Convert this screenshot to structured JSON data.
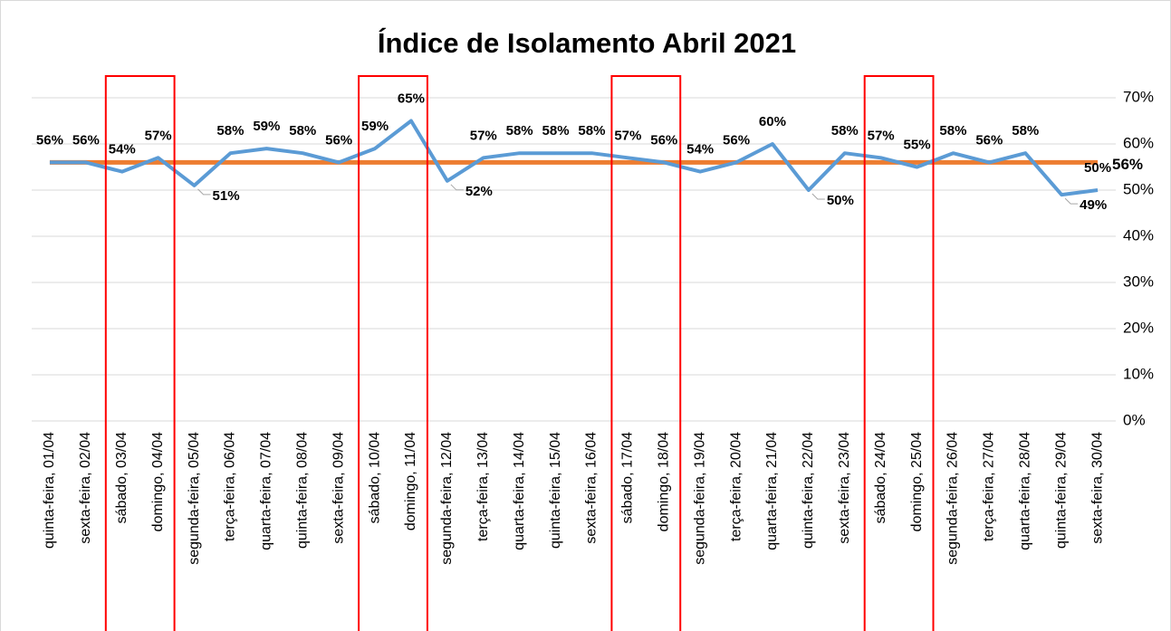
{
  "chart_data": {
    "type": "line",
    "title": "Índice de Isolamento Abril 2021",
    "categories": [
      "quinta-feira, 01/04",
      "sexta-feira, 02/04",
      "sábado, 03/04",
      "domingo, 04/04",
      "segunda-feira, 05/04",
      "terça-feira, 06/04",
      "quarta-feira, 07/04",
      "quinta-feira, 08/04",
      "sexta-feira, 09/04",
      "sábado, 10/04",
      "domingo, 11/04",
      "segunda-feira, 12/04",
      "terça-feira, 13/04",
      "quarta-feira, 14/04",
      "quinta-feira, 15/04",
      "sexta-feira, 16/04",
      "sábado, 17/04",
      "domingo, 18/04",
      "segunda-feira, 19/04",
      "terça-feira, 20/04",
      "quarta-feira, 21/04",
      "quinta-feira, 22/04",
      "sexta-feira, 23/04",
      "sábado, 24/04",
      "domingo, 25/04",
      "segunda-feira, 26/04",
      "terça-feira, 27/04",
      "quarta-feira, 28/04",
      "quinta-feira, 29/04",
      "sexta-feira, 30/04"
    ],
    "values": [
      56,
      56,
      54,
      57,
      51,
      58,
      59,
      58,
      56,
      59,
      65,
      52,
      57,
      58,
      58,
      58,
      57,
      56,
      54,
      56,
      60,
      50,
      58,
      57,
      55,
      58,
      56,
      58,
      49,
      50
    ],
    "value_labels": [
      "56%",
      "56%",
      "54%",
      "57%",
      "51%",
      "58%",
      "59%",
      "58%",
      "56%",
      "59%",
      "65%",
      "52%",
      "57%",
      "58%",
      "58%",
      "58%",
      "57%",
      "56%",
      "54%",
      "56%",
      "60%",
      "50%",
      "58%",
      "57%",
      "55%",
      "58%",
      "56%",
      "58%",
      "49%",
      "50%"
    ],
    "color": "#5b9bd5",
    "reference_line": {
      "value": 56,
      "label": "56%",
      "color": "#ed7d31",
      "label_color": "#ff0000"
    },
    "highlight": [
      false,
      false,
      true,
      true,
      false,
      false,
      false,
      false,
      false,
      true,
      true,
      false,
      false,
      false,
      false,
      false,
      true,
      true,
      false,
      false,
      false,
      false,
      false,
      true,
      true,
      false,
      false,
      false,
      false,
      false
    ],
    "highlight_color": "#ff0000",
    "ylim": [
      0,
      70
    ],
    "yticks": [
      {
        "value": 0,
        "label": "0%"
      },
      {
        "value": 10,
        "label": "10%"
      },
      {
        "value": 20,
        "label": "20%"
      },
      {
        "value": 30,
        "label": "30%"
      },
      {
        "value": 40,
        "label": "40%"
      },
      {
        "value": 50,
        "label": "50%"
      },
      {
        "value": 60,
        "label": "60%"
      },
      {
        "value": 70,
        "label": "70%"
      }
    ],
    "y_axis_side": "right",
    "grid": true
  }
}
